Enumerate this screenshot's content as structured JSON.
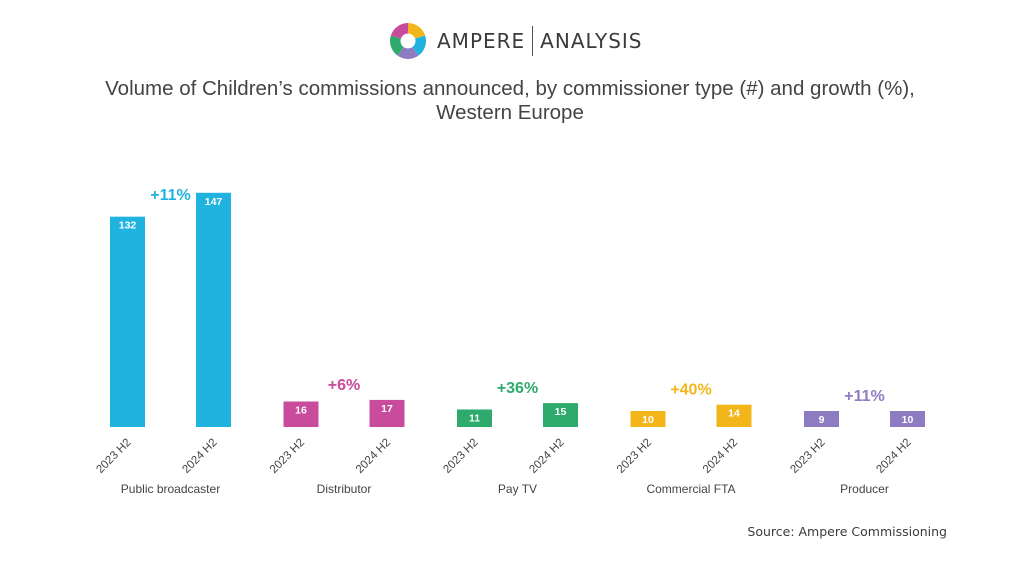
{
  "brand": {
    "name_part1": "AMPERE",
    "name_part2": "ANALYSIS",
    "logo_colors": [
      "#F2B61B",
      "#21B3E0",
      "#8E7CC3",
      "#2EAB6C",
      "#C84B9C"
    ]
  },
  "source": "Source: Ampere Commissioning",
  "chart_data": {
    "type": "bar",
    "title": "Volume of Children’s commissions announced, by commissioner type (#) and growth (%), Western Europe",
    "title_lines": [
      "Volume of Children’s commissions announced, by commissioner type (#) and growth (%),",
      "Western Europe"
    ],
    "ylim": [
      0,
      150
    ],
    "grid": false,
    "legend": "none",
    "groups": [
      {
        "name": "Public broadcaster",
        "color": "#21B3E0",
        "growth": "+11%",
        "bars": [
          {
            "period": "2023 H2",
            "value": 132
          },
          {
            "period": "2024 H2",
            "value": 147
          }
        ]
      },
      {
        "name": "Distributor",
        "color": "#C84B9C",
        "growth": "+6%",
        "bars": [
          {
            "period": "2023 H2",
            "value": 16
          },
          {
            "period": "2024 H2",
            "value": 17
          }
        ]
      },
      {
        "name": "Pay TV",
        "color": "#2EAB6C",
        "growth": "+36%",
        "bars": [
          {
            "period": "2023 H2",
            "value": 11
          },
          {
            "period": "2024 H2",
            "value": 15
          }
        ]
      },
      {
        "name": "Commercial FTA",
        "color": "#F2B61B",
        "growth": "+40%",
        "bars": [
          {
            "period": "2023 H2",
            "value": 10
          },
          {
            "period": "2024 H2",
            "value": 14
          }
        ]
      },
      {
        "name": "Producer",
        "color": "#8E7CC3",
        "growth": "+11%",
        "bars": [
          {
            "period": "2023 H2",
            "value": 9
          },
          {
            "period": "2024 H2",
            "value": 10
          }
        ]
      }
    ]
  }
}
